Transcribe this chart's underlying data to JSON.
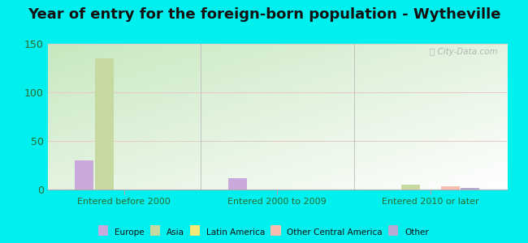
{
  "title": "Year of entry for the foreign-born population - Wytheville",
  "categories": [
    "Entered before 2000",
    "Entered 2000 to 2009",
    "Entered 2010 or later"
  ],
  "series": {
    "Europe": [
      30,
      12,
      0
    ],
    "Asia": [
      135,
      0,
      5
    ],
    "Latin America": [
      0,
      0,
      0
    ],
    "Other Central America": [
      0,
      0,
      3
    ],
    "Other": [
      0,
      0,
      2
    ]
  },
  "colors": {
    "Europe": "#c9a8dc",
    "Asia": "#c5d9a0",
    "Latin America": "#f2e976",
    "Other Central America": "#f5bdb0",
    "Other": "#b5a8d5"
  },
  "bar_width": 0.13,
  "ylim": [
    0,
    150
  ],
  "yticks": [
    0,
    50,
    100,
    150
  ],
  "cyan_bg": "#00EFEF",
  "title_fontsize": 13,
  "watermark": "ⓘ City-Data.com"
}
